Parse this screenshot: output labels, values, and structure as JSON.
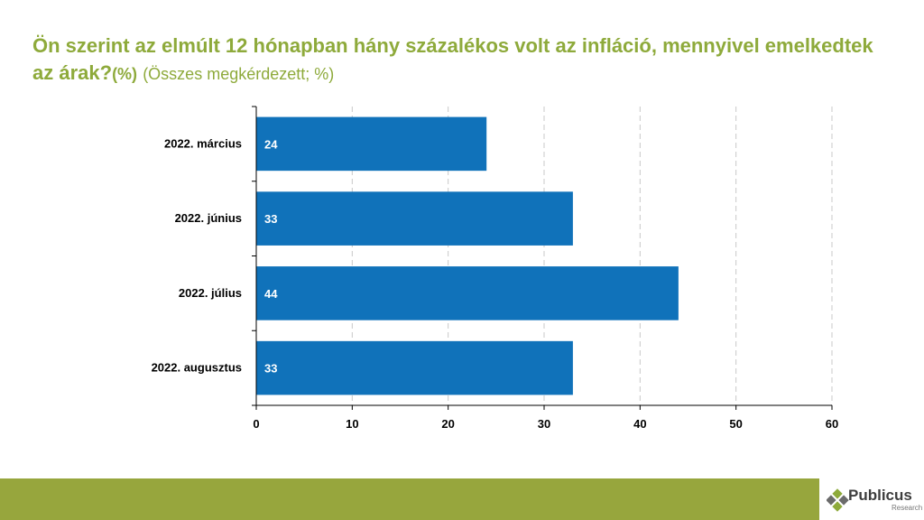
{
  "title": {
    "main": "Ön szerint az elmúlt 12 hónapban hány százalékos volt az infláció, mennyivel emelkedtek az árak?",
    "unit": "(%)",
    "sub": "(Összes megkérdezett; %)"
  },
  "chart_data": {
    "type": "bar",
    "orientation": "horizontal",
    "categories": [
      "2022. március",
      "2022. június",
      "2022. július",
      "2022. augusztus"
    ],
    "values": [
      24,
      33,
      44,
      33
    ],
    "xlim": [
      0,
      60
    ],
    "xticks": [
      0,
      10,
      20,
      30,
      40,
      50,
      60
    ],
    "grid": "vertical-dashed",
    "bar_color": "#1072ba"
  },
  "logo": {
    "name": "Publicus",
    "sub": "Research"
  }
}
